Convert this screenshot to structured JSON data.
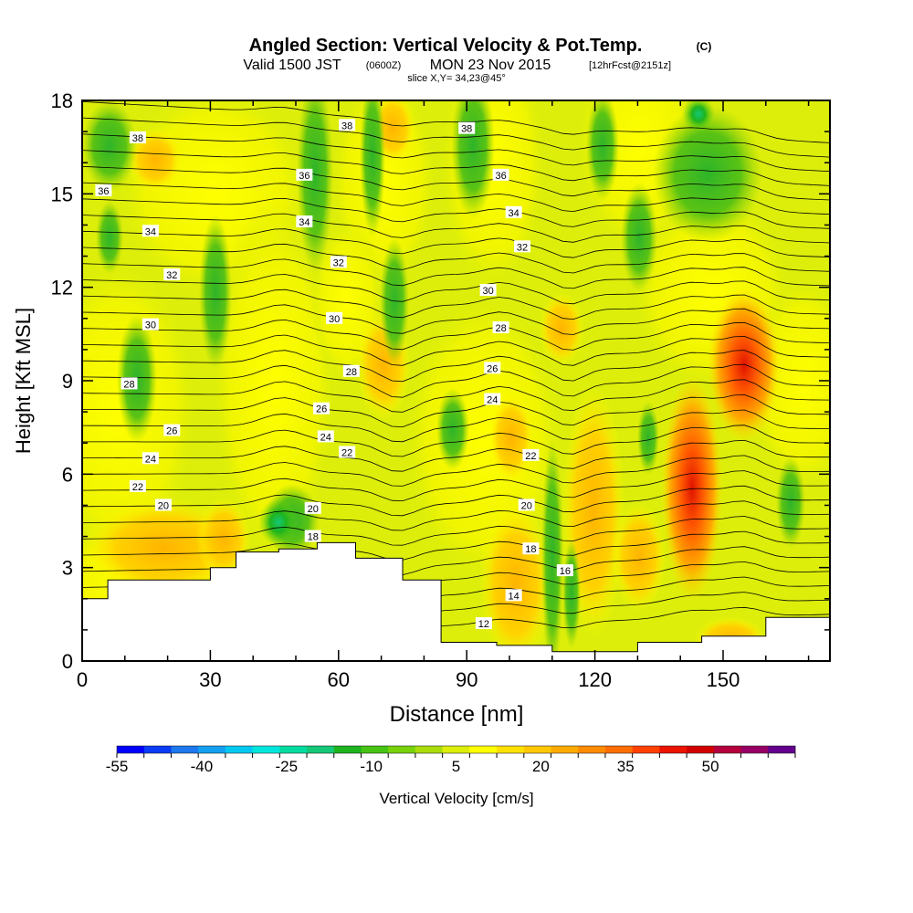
{
  "title": {
    "main": "Angled Section: Vertical Velocity & Pot.Temp.",
    "main_units": "(C)",
    "valid_a": "Valid 1500 JST",
    "valid_b": "(0600Z)",
    "valid_c": "MON 23 Nov 2015",
    "valid_d": "[12hrFcst@2151z]",
    "slice": "slice X,Y= 34,23@45°"
  },
  "chart_data": {
    "type": "heatmap",
    "xlabel": "Distance [nm]",
    "ylabel": "Height [Kft MSL]",
    "xlim": [
      0,
      175
    ],
    "ylim": [
      0,
      18
    ],
    "x_ticks": [
      0,
      30,
      60,
      90,
      120,
      150
    ],
    "y_ticks": [
      0,
      3,
      6,
      9,
      12,
      15,
      18
    ],
    "colorbar": {
      "label": "Vertical Velocity [cm/s]",
      "tick_labels": [
        "-55",
        "-40",
        "-25",
        "-10",
        "5",
        "20",
        "35",
        "50"
      ],
      "range": [
        -55,
        65
      ],
      "step": 5,
      "colors": [
        "#0000ff",
        "#0a3cf5",
        "#1e78ee",
        "#14a0f0",
        "#00c8f0",
        "#00e6dc",
        "#00dca0",
        "#14c878",
        "#1eb41e",
        "#46c314",
        "#78d20a",
        "#aadc0a",
        "#dcee0a",
        "#ffff00",
        "#ffe100",
        "#ffc800",
        "#ffaa00",
        "#ff8c00",
        "#ff6e00",
        "#ff4100",
        "#eb1400",
        "#d20000",
        "#b4003c",
        "#960064",
        "#64008c"
      ]
    },
    "contour_labels": [
      "12",
      "14",
      "16",
      "18",
      "20",
      "22",
      "24",
      "26",
      "28",
      "30",
      "32",
      "34",
      "36",
      "38"
    ],
    "terrain_kft": [
      [
        0,
        2
      ],
      [
        6,
        2.6
      ],
      [
        30,
        3
      ],
      [
        36,
        3.5
      ],
      [
        46,
        3.6
      ],
      [
        55,
        3.8
      ],
      [
        64,
        3.3
      ],
      [
        75,
        2.6
      ],
      [
        84,
        0.6
      ],
      [
        97,
        0.5
      ],
      [
        110,
        0.3
      ],
      [
        130,
        0.6
      ],
      [
        145,
        0.8
      ],
      [
        160,
        1.4
      ],
      [
        175,
        1.5
      ]
    ],
    "features": [
      {
        "kind": "updraft",
        "x": 143,
        "y": 5.8,
        "value": 40
      },
      {
        "kind": "updraft",
        "x": 155,
        "y": 9.1,
        "value": 40
      },
      {
        "kind": "downdraft",
        "x": 47,
        "y": 4.5,
        "value": -20
      },
      {
        "kind": "downdraft",
        "x": 145,
        "y": 17.3,
        "value": -25
      }
    ]
  }
}
